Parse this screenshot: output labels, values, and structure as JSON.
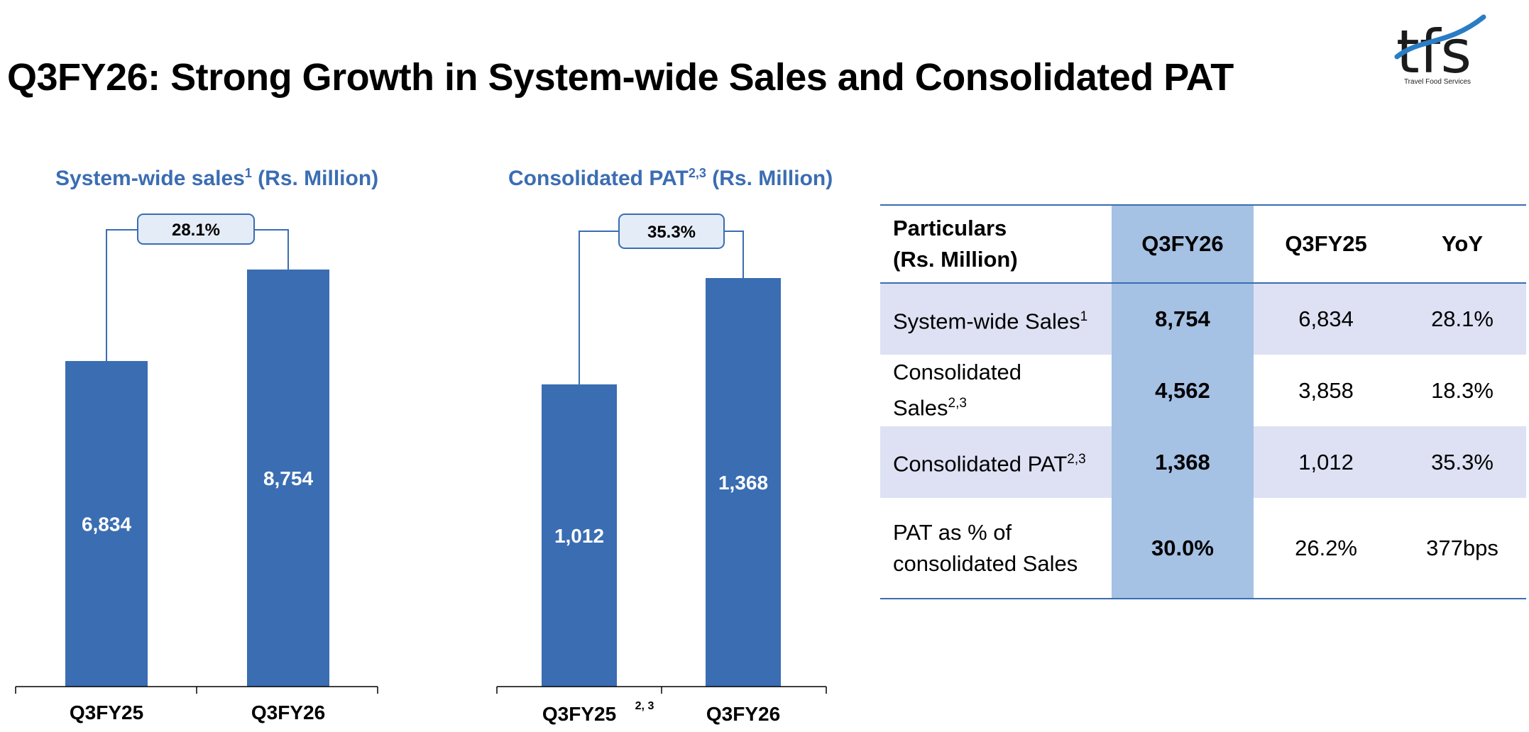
{
  "title": "Q3FY26: Strong Growth in System-wide Sales and Consolidated PAT",
  "logo": {
    "text": "tfs",
    "subtitle": "Travel Food Services"
  },
  "chart_data": [
    {
      "type": "bar",
      "title": "System-wide sales",
      "title_sup": "1",
      "title_unit": "(Rs. Million)",
      "categories": [
        "Q3FY25",
        "Q3FY26"
      ],
      "category_sup": [
        "",
        ""
      ],
      "values": [
        6834,
        8754
      ],
      "value_labels": [
        "6,834",
        "8,754"
      ],
      "growth_label": "28.1%",
      "color": "#3a6db2"
    },
    {
      "type": "bar",
      "title": "Consolidated PAT",
      "title_sup": "2,3",
      "title_unit": "(Rs. Million)",
      "categories": [
        "Q3FY25",
        "Q3FY26"
      ],
      "category_sup": [
        "2, 3",
        ""
      ],
      "values": [
        1012,
        1368
      ],
      "value_labels": [
        "1,012",
        "1,368"
      ],
      "growth_label": "35.3%",
      "color": "#3a6db2"
    }
  ],
  "table": {
    "header": {
      "particulars_line1": "Particulars",
      "particulars_line2": "(Rs. Million)",
      "col_current": "Q3FY26",
      "col_prior": "Q3FY25",
      "col_yoy": "YoY"
    },
    "rows": [
      {
        "label": "System-wide Sales",
        "sup": "1",
        "current": "8,754",
        "prior": "6,834",
        "yoy": "28.1%"
      },
      {
        "label": "Consolidated Sales",
        "sup": "2,3",
        "current": "4,562",
        "prior": "3,858",
        "yoy": "18.3%"
      },
      {
        "label": "Consolidated PAT",
        "sup": "2,3",
        "current": "1,368",
        "prior": "1,012",
        "yoy": "35.3%"
      }
    ],
    "last_row": {
      "label_line1": "PAT as % of",
      "label_line2": "consolidated Sales",
      "current": "30.0%",
      "prior": "26.2%",
      "yoy": "377bps"
    }
  }
}
